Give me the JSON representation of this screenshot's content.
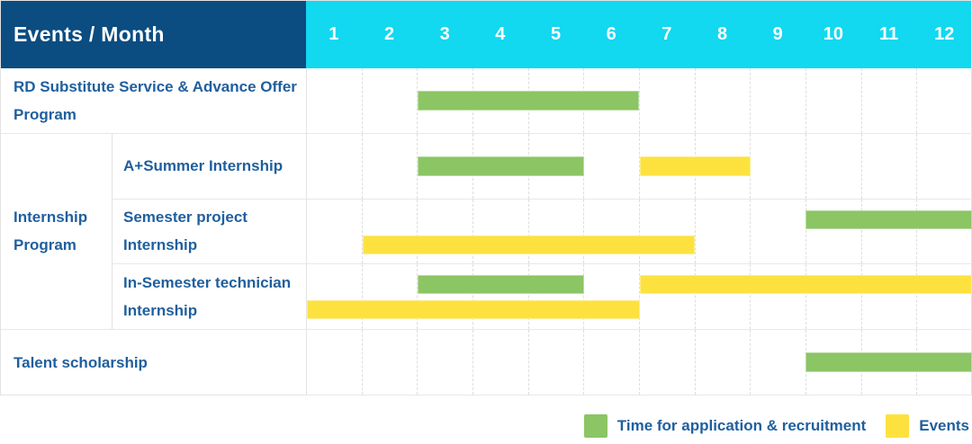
{
  "colors": {
    "header_bg": "#0b4c81",
    "months_bg": "#12d8f0",
    "green": "#8bc564",
    "yellow": "#fde23f",
    "label_text": "#1f5f9e",
    "header_text": "#ffffff",
    "grid_line": "#e3e3e3"
  },
  "group_label": "Internship Program",
  "chart_data": {
    "type": "gantt",
    "title": "Events / Month",
    "x_axis": {
      "label": "Month",
      "range": [
        1,
        12
      ],
      "ticks": [
        "1",
        "2",
        "3",
        "4",
        "5",
        "6",
        "7",
        "8",
        "9",
        "10",
        "11",
        "12"
      ]
    },
    "legend": [
      {
        "name": "Time for application & recruitment",
        "color": "#8bc564"
      },
      {
        "name": "Events",
        "color": "#fde23f"
      }
    ],
    "rows": [
      {
        "event": "RD Substitute Service & Advance Offer Program",
        "group": null,
        "bars": [
          {
            "series": "Time for application & recruitment",
            "start_month": 3,
            "end_month": 6,
            "lane": "single"
          }
        ]
      },
      {
        "event": "A+Summer Internship",
        "group": "Internship Program",
        "bars": [
          {
            "series": "Time for application & recruitment",
            "start_month": 3,
            "end_month": 5,
            "lane": "single"
          },
          {
            "series": "Events",
            "start_month": 7,
            "end_month": 8,
            "lane": "single"
          }
        ]
      },
      {
        "event": "Semester project Internship",
        "group": "Internship Program",
        "bars": [
          {
            "series": "Time for application & recruitment",
            "start_month": 10,
            "end_month": 12,
            "lane": "top"
          },
          {
            "series": "Events",
            "start_month": 2,
            "end_month": 7,
            "lane": "bottom"
          }
        ]
      },
      {
        "event": "In-Semester technician Internship",
        "group": "Internship Program",
        "bars": [
          {
            "series": "Time for application & recruitment",
            "start_month": 3,
            "end_month": 5,
            "lane": "top"
          },
          {
            "series": "Events",
            "start_month": 7,
            "end_month": 12,
            "lane": "top"
          },
          {
            "series": "Events",
            "start_month": 1,
            "end_month": 6,
            "lane": "bottom"
          }
        ]
      },
      {
        "event": "Talent scholarship",
        "group": null,
        "bars": [
          {
            "series": "Time for application & recruitment",
            "start_month": 10,
            "end_month": 12,
            "lane": "single"
          }
        ]
      }
    ]
  }
}
